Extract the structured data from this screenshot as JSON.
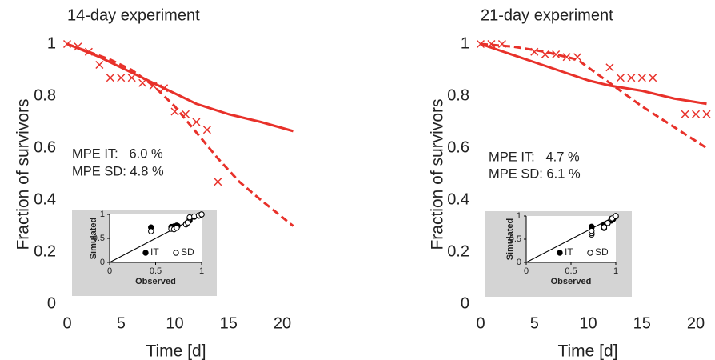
{
  "chart_data": [
    {
      "type": "line",
      "title": "14-day experiment",
      "xlabel": "Time [d]",
      "ylabel": "Fraction of survivors",
      "xlim": [
        0,
        21
      ],
      "ylim": [
        0,
        1.05
      ],
      "xticks": [
        0,
        5,
        10,
        15,
        20
      ],
      "yticks": [
        0,
        0.2,
        0.4,
        0.6,
        0.8,
        1
      ],
      "grid": false,
      "annotations": [
        "MPE IT:   6.0 %",
        "MPE SD: 4.8 %"
      ],
      "series": [
        {
          "style": "solid",
          "color": "#e8312a",
          "x": [
            0,
            3,
            6,
            9,
            12,
            15,
            18,
            21
          ],
          "values": [
            1,
            0.95,
            0.89,
            0.83,
            0.77,
            0.73,
            0.7,
            0.665
          ]
        },
        {
          "style": "dashed",
          "color": "#e8312a",
          "x": [
            0,
            2,
            4,
            6,
            8,
            10,
            12,
            14,
            16,
            18,
            21
          ],
          "values": [
            1,
            0.97,
            0.94,
            0.9,
            0.84,
            0.76,
            0.66,
            0.56,
            0.47,
            0.4,
            0.3
          ]
        },
        {
          "style": "cross",
          "color": "#e8312a",
          "x": [
            0,
            1,
            2,
            3,
            4,
            5,
            6,
            7,
            8,
            9,
            10,
            11,
            12,
            13,
            14
          ],
          "values": [
            1,
            0.99,
            0.97,
            0.92,
            0.87,
            0.87,
            0.87,
            0.85,
            0.84,
            0.83,
            0.74,
            0.73,
            0.7,
            0.67,
            0.47
          ]
        }
      ]
    },
    {
      "type": "scatter",
      "xlabel": "Observed",
      "ylabel": "Simulated",
      "xlim": [
        0,
        1
      ],
      "ylim": [
        0,
        1
      ],
      "xticks": [
        0,
        0.5,
        1
      ],
      "yticks": [
        0,
        0.5,
        1
      ],
      "legend": "lower right",
      "series": [
        {
          "name": "IT",
          "color": "#000000",
          "filled": true,
          "x": [
            0.45,
            0.67,
            0.7,
            0.73,
            0.74,
            0.83,
            0.84,
            0.87,
            0.87,
            0.92,
            0.97,
            0.99,
            1
          ],
          "values": [
            0.73,
            0.74,
            0.75,
            0.77,
            0.76,
            0.8,
            0.82,
            0.87,
            0.9,
            0.95,
            0.97,
            0.99,
            1
          ]
        },
        {
          "name": "SD",
          "color": "#000000",
          "filled": false,
          "x": [
            0.45,
            0.67,
            0.7,
            0.73,
            0.83,
            0.85,
            0.87,
            0.87,
            0.92,
            0.97,
            1
          ],
          "values": [
            0.65,
            0.7,
            0.69,
            0.72,
            0.79,
            0.83,
            0.92,
            0.94,
            0.96,
            0.98,
            1
          ]
        }
      ]
    },
    {
      "type": "line",
      "title": "21-day experiment",
      "xlabel": "Time [d]",
      "ylabel": "Fraction of survivors",
      "xlim": [
        0,
        21
      ],
      "ylim": [
        0,
        1.05
      ],
      "xticks": [
        0,
        5,
        10,
        15,
        20
      ],
      "yticks": [
        0,
        0.2,
        0.4,
        0.6,
        0.8,
        1
      ],
      "grid": false,
      "annotations": [
        "MPE IT:   4.7 %",
        "MPE SD: 6.1 %"
      ],
      "series": [
        {
          "style": "solid",
          "color": "#e8312a",
          "x": [
            0,
            5,
            10,
            12,
            15,
            18,
            21
          ],
          "values": [
            1,
            0.93,
            0.86,
            0.84,
            0.82,
            0.79,
            0.77
          ]
        },
        {
          "style": "dashed",
          "color": "#e8312a",
          "x": [
            0,
            3,
            6,
            9,
            12,
            15,
            18,
            21
          ],
          "values": [
            1,
            0.99,
            0.97,
            0.94,
            0.85,
            0.76,
            0.68,
            0.6
          ]
        },
        {
          "style": "cross",
          "color": "#e8312a",
          "x": [
            0,
            1,
            2,
            5,
            6,
            7,
            8,
            9,
            12,
            13,
            14,
            15,
            16,
            19,
            20,
            21
          ],
          "values": [
            1,
            1,
            1,
            0.97,
            0.96,
            0.96,
            0.95,
            0.95,
            0.91,
            0.87,
            0.87,
            0.87,
            0.87,
            0.73,
            0.73,
            0.73
          ]
        }
      ]
    },
    {
      "type": "scatter",
      "xlabel": "Observed",
      "ylabel": "Simulated",
      "xlim": [
        0,
        1
      ],
      "ylim": [
        0,
        1
      ],
      "xticks": [
        0,
        0.5,
        1
      ],
      "yticks": [
        0,
        0.5,
        1
      ],
      "legend": "lower right",
      "series": [
        {
          "name": "IT",
          "color": "#000000",
          "filled": true,
          "x": [
            0.73,
            0.73,
            0.87,
            0.87,
            0.91,
            0.95,
            0.96,
            0.97,
            1,
            1
          ],
          "values": [
            0.75,
            0.77,
            0.8,
            0.82,
            0.84,
            0.9,
            0.92,
            0.93,
            1,
            0.99
          ]
        },
        {
          "name": "SD",
          "color": "#000000",
          "filled": false,
          "x": [
            0.73,
            0.73,
            0.73,
            0.87,
            0.87,
            0.91,
            0.95,
            0.96,
            1
          ],
          "values": [
            0.6,
            0.63,
            0.68,
            0.74,
            0.76,
            0.85,
            0.94,
            0.95,
            1
          ]
        }
      ]
    }
  ]
}
